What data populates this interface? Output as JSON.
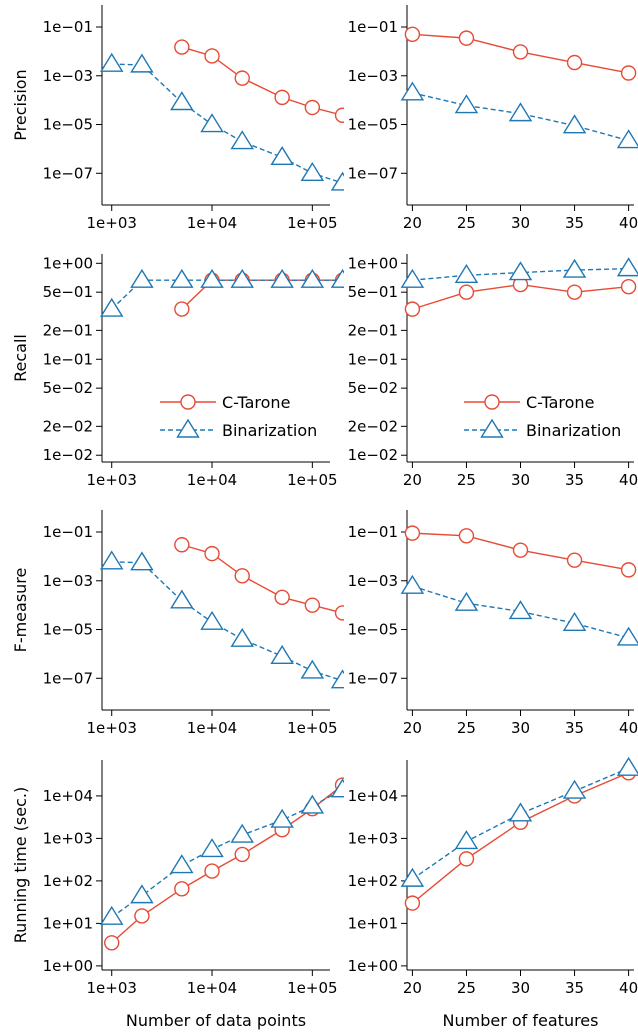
{
  "colors": {
    "ctarone": "#e64b35",
    "binarization": "#1f78b4"
  },
  "chart_data": [
    {
      "type": "line",
      "id": "precision-datapoints",
      "x_scale": "log",
      "y_scale": "log",
      "xlabel": "",
      "ylabel": "Precision",
      "xlim": [
        800,
        150000
      ],
      "ylim": [
        5e-09,
        0.8
      ],
      "x_ticks": [
        {
          "v": 1000,
          "label": "1e+03"
        },
        {
          "v": 10000,
          "label": "1e+04"
        },
        {
          "v": 100000,
          "label": "1e+05"
        }
      ],
      "y_ticks": [
        {
          "v": 1e-07,
          "label": "1e−07"
        },
        {
          "v": 1e-05,
          "label": "1e−05"
        },
        {
          "v": 0.001,
          "label": "1e−03"
        },
        {
          "v": 0.1,
          "label": "1e−01"
        }
      ],
      "series": [
        {
          "name": "C-Tarone",
          "x": [
            5000,
            10000,
            20000,
            50000,
            100000,
            200000
          ],
          "y": [
            0.015,
            0.0065,
            0.0008,
            0.00013,
            5e-05,
            2.4e-05
          ]
        },
        {
          "name": "Binarization",
          "x": [
            1000,
            2000,
            5000,
            10000,
            20000,
            50000,
            100000,
            200000
          ],
          "y": [
            0.003,
            0.0028,
            8e-05,
            1e-05,
            2e-06,
            4.5e-07,
            1e-07,
            4e-08
          ]
        }
      ]
    },
    {
      "type": "line",
      "id": "precision-features",
      "x_scale": "linear",
      "y_scale": "log",
      "xlabel": "",
      "ylabel": "",
      "xlim": [
        19.5,
        40.5
      ],
      "ylim": [
        5e-09,
        0.8
      ],
      "x_ticks": [
        {
          "v": 20,
          "label": "20"
        },
        {
          "v": 25,
          "label": "25"
        },
        {
          "v": 30,
          "label": "30"
        },
        {
          "v": 35,
          "label": "35"
        },
        {
          "v": 40,
          "label": "40"
        }
      ],
      "y_ticks": [
        {
          "v": 1e-07,
          "label": "1e−07"
        },
        {
          "v": 1e-05,
          "label": "1e−05"
        },
        {
          "v": 0.001,
          "label": "1e−03"
        },
        {
          "v": 0.1,
          "label": "1e−01"
        }
      ],
      "series": [
        {
          "name": "C-Tarone",
          "x": [
            20,
            25,
            30,
            35,
            40
          ],
          "y": [
            0.05,
            0.035,
            0.0095,
            0.0035,
            0.0013
          ]
        },
        {
          "name": "Binarization",
          "x": [
            20,
            25,
            30,
            35,
            40
          ],
          "y": [
            0.0002,
            6e-05,
            2.8e-05,
            9e-06,
            2.2e-06
          ]
        }
      ]
    },
    {
      "type": "line",
      "id": "recall-datapoints",
      "x_scale": "log",
      "y_scale": "log",
      "xlabel": "",
      "ylabel": "Recall",
      "xlim": [
        800,
        150000
      ],
      "ylim": [
        0.0085,
        1.25
      ],
      "x_ticks": [
        {
          "v": 1000,
          "label": "1e+03"
        },
        {
          "v": 10000,
          "label": "1e+04"
        },
        {
          "v": 100000,
          "label": "1e+05"
        }
      ],
      "y_ticks": [
        {
          "v": 0.01,
          "label": "1e−02"
        },
        {
          "v": 0.02,
          "label": "2e−02"
        },
        {
          "v": 0.05,
          "label": "5e−02"
        },
        {
          "v": 0.1,
          "label": "1e−01"
        },
        {
          "v": 0.2,
          "label": "2e−01"
        },
        {
          "v": 0.5,
          "label": "5e−01"
        },
        {
          "v": 1,
          "label": "1e+00"
        }
      ],
      "legend": true,
      "series": [
        {
          "name": "C-Tarone",
          "x": [
            5000,
            10000,
            20000,
            50000,
            100000,
            200000
          ],
          "y": [
            0.3333,
            0.6667,
            0.6667,
            0.6667,
            0.6667,
            0.6667
          ]
        },
        {
          "name": "Binarization",
          "x": [
            1000,
            2000,
            5000,
            10000,
            20000,
            50000,
            100000,
            200000
          ],
          "y": [
            0.3333,
            0.6667,
            0.6667,
            0.6667,
            0.6667,
            0.6667,
            0.6667,
            0.6667
          ]
        }
      ]
    },
    {
      "type": "line",
      "id": "recall-features",
      "x_scale": "linear",
      "y_scale": "log",
      "xlabel": "",
      "ylabel": "",
      "xlim": [
        19.5,
        40.5
      ],
      "ylim": [
        0.0085,
        1.25
      ],
      "x_ticks": [
        {
          "v": 20,
          "label": "20"
        },
        {
          "v": 25,
          "label": "25"
        },
        {
          "v": 30,
          "label": "30"
        },
        {
          "v": 35,
          "label": "35"
        },
        {
          "v": 40,
          "label": "40"
        }
      ],
      "y_ticks": [
        {
          "v": 0.01,
          "label": "1e−02"
        },
        {
          "v": 0.02,
          "label": "2e−02"
        },
        {
          "v": 0.05,
          "label": "5e−02"
        },
        {
          "v": 0.1,
          "label": "1e−01"
        },
        {
          "v": 0.2,
          "label": "2e−01"
        },
        {
          "v": 0.5,
          "label": "5e−01"
        },
        {
          "v": 1,
          "label": "1e+00"
        }
      ],
      "legend": true,
      "series": [
        {
          "name": "C-Tarone",
          "x": [
            20,
            25,
            30,
            35,
            40
          ],
          "y": [
            0.333,
            0.5,
            0.6,
            0.5,
            0.57
          ]
        },
        {
          "name": "Binarization",
          "x": [
            20,
            25,
            30,
            35,
            40
          ],
          "y": [
            0.667,
            0.75,
            0.8,
            0.85,
            0.88
          ]
        }
      ]
    },
    {
      "type": "line",
      "id": "fmeasure-datapoints",
      "x_scale": "log",
      "y_scale": "log",
      "xlabel": "",
      "ylabel": "F-measure",
      "xlim": [
        800,
        150000
      ],
      "ylim": [
        5e-09,
        0.8
      ],
      "x_ticks": [
        {
          "v": 1000,
          "label": "1e+03"
        },
        {
          "v": 10000,
          "label": "1e+04"
        },
        {
          "v": 100000,
          "label": "1e+05"
        }
      ],
      "y_ticks": [
        {
          "v": 1e-07,
          "label": "1e−07"
        },
        {
          "v": 1e-05,
          "label": "1e−05"
        },
        {
          "v": 0.001,
          "label": "1e−03"
        },
        {
          "v": 0.1,
          "label": "1e−01"
        }
      ],
      "series": [
        {
          "name": "C-Tarone",
          "x": [
            5000,
            10000,
            20000,
            50000,
            100000,
            200000
          ],
          "y": [
            0.03,
            0.013,
            0.0016,
            0.00021,
            0.0001,
            4.8e-05
          ]
        },
        {
          "name": "Binarization",
          "x": [
            1000,
            2000,
            5000,
            10000,
            20000,
            50000,
            100000,
            200000
          ],
          "y": [
            0.006,
            0.0055,
            0.00015,
            2e-05,
            4e-06,
            8e-07,
            2e-07,
            8e-08
          ]
        }
      ]
    },
    {
      "type": "line",
      "id": "fmeasure-features",
      "x_scale": "linear",
      "y_scale": "log",
      "xlabel": "",
      "ylabel": "",
      "xlim": [
        19.5,
        40.5
      ],
      "ylim": [
        5e-09,
        0.8
      ],
      "x_ticks": [
        {
          "v": 20,
          "label": "20"
        },
        {
          "v": 25,
          "label": "25"
        },
        {
          "v": 30,
          "label": "30"
        },
        {
          "v": 35,
          "label": "35"
        },
        {
          "v": 40,
          "label": "40"
        }
      ],
      "y_ticks": [
        {
          "v": 1e-07,
          "label": "1e−07"
        },
        {
          "v": 1e-05,
          "label": "1e−05"
        },
        {
          "v": 0.001,
          "label": "1e−03"
        },
        {
          "v": 0.1,
          "label": "1e−01"
        }
      ],
      "series": [
        {
          "name": "C-Tarone",
          "x": [
            20,
            25,
            30,
            35,
            40
          ],
          "y": [
            0.09,
            0.07,
            0.018,
            0.007,
            0.0028
          ]
        },
        {
          "name": "Binarization",
          "x": [
            20,
            25,
            30,
            35,
            40
          ],
          "y": [
            0.0006,
            0.00012,
            5.5e-05,
            1.8e-05,
            4.5e-06
          ]
        }
      ]
    },
    {
      "type": "line",
      "id": "runtime-datapoints",
      "x_scale": "log",
      "y_scale": "log",
      "xlabel": "Number of data points",
      "ylabel": "Running time (sec.)",
      "xlim": [
        800,
        150000
      ],
      "ylim": [
        0.8,
        70000
      ],
      "x_ticks": [
        {
          "v": 1000,
          "label": "1e+03"
        },
        {
          "v": 10000,
          "label": "1e+04"
        },
        {
          "v": 100000,
          "label": "1e+05"
        }
      ],
      "y_ticks": [
        {
          "v": 1,
          "label": "1e+00"
        },
        {
          "v": 10,
          "label": "1e+01"
        },
        {
          "v": 100,
          "label": "1e+02"
        },
        {
          "v": 1000,
          "label": "1e+03"
        },
        {
          "v": 10000,
          "label": "1e+04"
        }
      ],
      "series": [
        {
          "name": "C-Tarone",
          "x": [
            1000,
            2000,
            5000,
            10000,
            20000,
            50000,
            100000,
            200000
          ],
          "y": [
            3.5,
            15,
            65,
            170,
            420,
            1600,
            5000,
            18000
          ]
        },
        {
          "name": "Binarization",
          "x": [
            1000,
            2000,
            5000,
            10000,
            20000,
            50000,
            100000,
            200000
          ],
          "y": [
            14,
            45,
            230,
            550,
            1200,
            2700,
            5800,
            14000
          ]
        }
      ]
    },
    {
      "type": "line",
      "id": "runtime-features",
      "x_scale": "linear",
      "y_scale": "log",
      "xlabel": "Number of features",
      "ylabel": "",
      "xlim": [
        19.5,
        40.5
      ],
      "ylim": [
        0.8,
        70000
      ],
      "x_ticks": [
        {
          "v": 20,
          "label": "20"
        },
        {
          "v": 25,
          "label": "25"
        },
        {
          "v": 30,
          "label": "30"
        },
        {
          "v": 35,
          "label": "35"
        },
        {
          "v": 40,
          "label": "40"
        }
      ],
      "y_ticks": [
        {
          "v": 1,
          "label": "1e+00"
        },
        {
          "v": 10,
          "label": "1e+01"
        },
        {
          "v": 100,
          "label": "1e+02"
        },
        {
          "v": 1000,
          "label": "1e+03"
        },
        {
          "v": 10000,
          "label": "1e+04"
        }
      ],
      "series": [
        {
          "name": "C-Tarone",
          "x": [
            20,
            25,
            30,
            35,
            40
          ],
          "y": [
            30,
            330,
            2400,
            10000,
            35000
          ]
        },
        {
          "name": "Binarization",
          "x": [
            20,
            25,
            30,
            35,
            40
          ],
          "y": [
            110,
            850,
            3800,
            13000,
            45000
          ]
        }
      ]
    }
  ]
}
